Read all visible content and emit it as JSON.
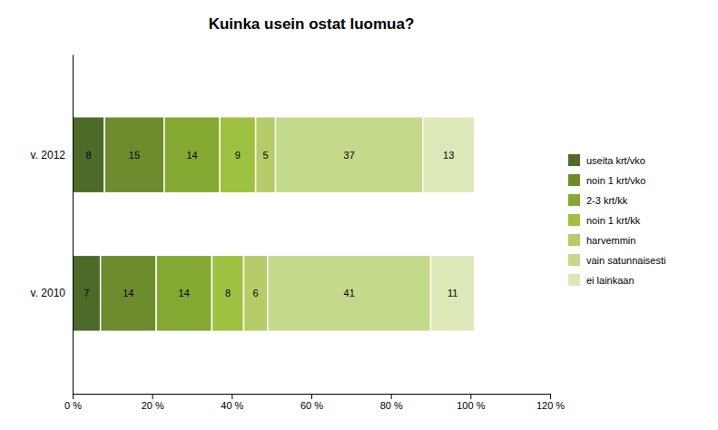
{
  "chart_data": {
    "type": "bar",
    "orientation": "horizontal",
    "stacked": true,
    "data_labels": true,
    "legend": "right",
    "grid": false,
    "title": "Kuinka usein ostat luomua?",
    "categories": [
      "v. 2012",
      "v. 2010"
    ],
    "series": [
      {
        "name": "useita krt/vko",
        "values": [
          8,
          7
        ],
        "color": "#4d6b28"
      },
      {
        "name": "noin 1 krt/vko",
        "values": [
          15,
          14
        ],
        "color": "#6e8c2e"
      },
      {
        "name": "2-3 krt/kk",
        "values": [
          14,
          14
        ],
        "color": "#85a832"
      },
      {
        "name": "noin 1 krt/kk",
        "values": [
          9,
          8
        ],
        "color": "#9fc040"
      },
      {
        "name": "harvemmin",
        "values": [
          5,
          6
        ],
        "color": "#b5cc68"
      },
      {
        "name": "vain satunnaisesti",
        "values": [
          37,
          41
        ],
        "color": "#c5d98a"
      },
      {
        "name": "ei lainkaan",
        "values": [
          13,
          11
        ],
        "color": "#dde8b8"
      }
    ],
    "xlim": [
      0,
      120
    ],
    "xticks": [
      {
        "value": 0,
        "label": "0 %"
      },
      {
        "value": 20,
        "label": "20 %"
      },
      {
        "value": 40,
        "label": "40 %"
      },
      {
        "value": 60,
        "label": "60 %"
      },
      {
        "value": 80,
        "label": "80 %"
      },
      {
        "value": 100,
        "label": "100 %"
      },
      {
        "value": 120,
        "label": "120 %"
      }
    ]
  }
}
